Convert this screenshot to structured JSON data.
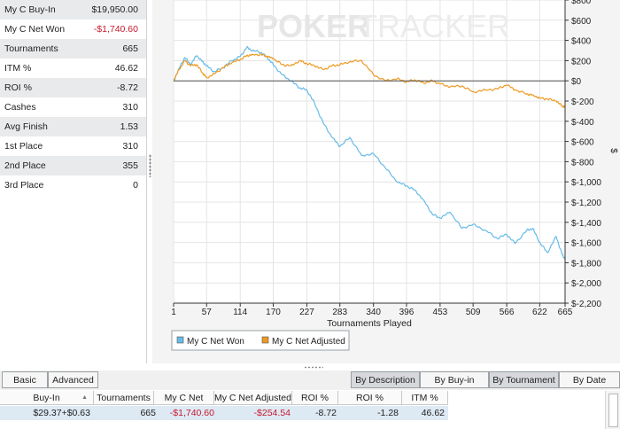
{
  "stats": [
    {
      "label": "My C Buy-In",
      "value": "$19,950.00",
      "negative": false
    },
    {
      "label": "My C Net Won",
      "value": "-$1,740.60",
      "negative": true
    },
    {
      "label": "Tournaments",
      "value": "665",
      "negative": false
    },
    {
      "label": "ITM %",
      "value": "46.62",
      "negative": false
    },
    {
      "label": "ROI %",
      "value": "-8.72",
      "negative": false
    },
    {
      "label": "Cashes",
      "value": "310",
      "negative": false
    },
    {
      "label": "Avg Finish",
      "value": "1.53",
      "negative": false
    },
    {
      "label": "1st Place",
      "value": "310",
      "negative": false
    },
    {
      "label": "2nd Place",
      "value": "355",
      "negative": false
    },
    {
      "label": "3rd Place",
      "value": "0",
      "negative": false
    }
  ],
  "watermark": {
    "part1": "POKER",
    "part2": "TRACKER"
  },
  "chart_data": {
    "type": "line",
    "xlabel": "Tournaments Played",
    "ylabel": "$",
    "x_ticks": [
      1,
      57,
      114,
      170,
      227,
      283,
      340,
      396,
      453,
      509,
      566,
      622,
      665
    ],
    "y_ticks": [
      {
        "v": 800,
        "t": "$800"
      },
      {
        "v": 600,
        "t": "$600"
      },
      {
        "v": 400,
        "t": "$400"
      },
      {
        "v": 200,
        "t": "$200"
      },
      {
        "v": 0,
        "t": "$0"
      },
      {
        "v": -200,
        "t": "$-200"
      },
      {
        "v": -400,
        "t": "$-400"
      },
      {
        "v": -600,
        "t": "$-600"
      },
      {
        "v": -800,
        "t": "$-800"
      },
      {
        "v": -1000,
        "t": "$-1,000"
      },
      {
        "v": -1200,
        "t": "$-1,200"
      },
      {
        "v": -1400,
        "t": "$-1,400"
      },
      {
        "v": -1600,
        "t": "$-1,600"
      },
      {
        "v": -1800,
        "t": "$-1,800"
      },
      {
        "v": -2000,
        "t": "$-2,000"
      },
      {
        "v": -2200,
        "t": "$-2,200"
      }
    ],
    "xlim": [
      1,
      665
    ],
    "ylim": [
      -2200,
      800
    ],
    "grid": true,
    "legend_position": "bottom-left",
    "series": [
      {
        "name": "My C Net Won",
        "color": "#66bbe8",
        "x": [
          1,
          10,
          20,
          30,
          40,
          50,
          57,
          70,
          85,
          100,
          114,
          125,
          135,
          150,
          160,
          170,
          185,
          200,
          215,
          227,
          240,
          255,
          270,
          283,
          300,
          320,
          340,
          360,
          380,
          396,
          410,
          425,
          440,
          453,
          470,
          490,
          509,
          530,
          550,
          566,
          580,
          600,
          610,
          622,
          635,
          650,
          660,
          665
        ],
        "y": [
          0,
          120,
          230,
          160,
          250,
          190,
          150,
          90,
          130,
          200,
          240,
          330,
          300,
          280,
          230,
          160,
          60,
          0,
          -70,
          -90,
          -220,
          -420,
          -560,
          -650,
          -560,
          -740,
          -720,
          -860,
          -1000,
          -1040,
          -1080,
          -1180,
          -1320,
          -1360,
          -1300,
          -1460,
          -1420,
          -1480,
          -1560,
          -1520,
          -1610,
          -1480,
          -1460,
          -1600,
          -1700,
          -1540,
          -1720,
          -1760
        ]
      },
      {
        "name": "My C Net Adjusted",
        "color": "#ee9a22",
        "x": [
          1,
          10,
          20,
          30,
          40,
          50,
          57,
          70,
          85,
          100,
          114,
          125,
          135,
          150,
          160,
          170,
          185,
          200,
          215,
          227,
          240,
          255,
          270,
          283,
          300,
          320,
          340,
          360,
          380,
          396,
          410,
          425,
          440,
          453,
          470,
          490,
          509,
          530,
          550,
          566,
          580,
          600,
          610,
          622,
          635,
          650,
          660,
          665
        ],
        "y": [
          0,
          110,
          200,
          150,
          160,
          80,
          30,
          70,
          130,
          180,
          210,
          250,
          260,
          260,
          240,
          220,
          160,
          150,
          200,
          170,
          150,
          110,
          150,
          160,
          190,
          200,
          60,
          0,
          20,
          -10,
          10,
          -20,
          0,
          -30,
          -60,
          -50,
          -110,
          -90,
          -80,
          -40,
          -90,
          -130,
          -140,
          -170,
          -180,
          -200,
          -250,
          -260
        ]
      }
    ]
  },
  "toolbar": {
    "basic": "Basic",
    "advanced": "Advanced",
    "by_description": "By Description",
    "by_buyin": "By Buy-in",
    "by_tournament": "By Tournament",
    "by_date": "By Date"
  },
  "table": {
    "headers": [
      "Buy-In",
      "Tournaments",
      "My C Net Won",
      "My C Net Adjusted",
      "ROI %",
      "ROI % Adjusted",
      "ITM %"
    ],
    "row": [
      "$29.37+$0.63",
      "665",
      "-$1,740.60",
      "-$254.54",
      "-8.72",
      "-1.28",
      "46.62"
    ]
  }
}
